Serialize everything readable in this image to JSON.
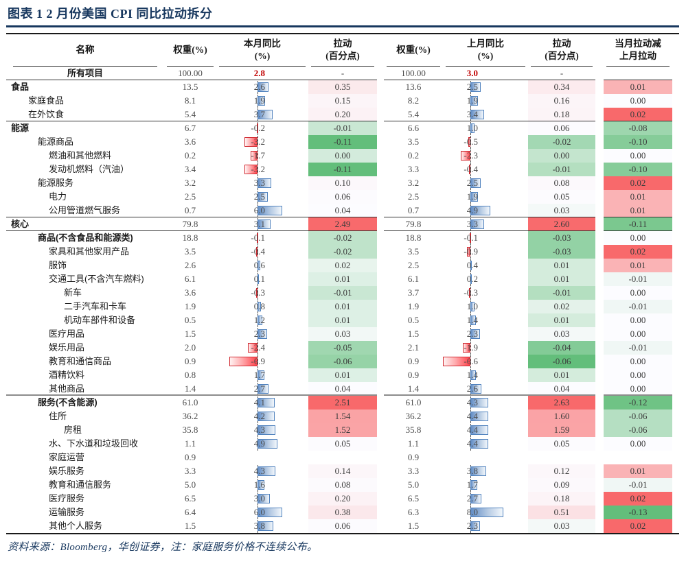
{
  "chart_data": {
    "type": "table",
    "title": "图表 1  2 月份美国 CPI 同比拉动拆分",
    "source_note": "资料来源：Bloomberg，华创证券，注：家庭服务价格不连续公布。",
    "columns": [
      "名称",
      "权重(%)",
      "本月同比(%)",
      "拉动(百分点)",
      "权重(%)",
      "上月同比(%)",
      "拉动(百分点)",
      "当月拉动减上月拉动"
    ],
    "header": {
      "name": "名称",
      "weight_cur": "权重(%)",
      "yoy_cur_1": "本月同比",
      "yoy_cur_2": "(%)",
      "pull_cur_1": "拉动",
      "pull_cur_2": "(百分点)",
      "weight_prev": "权重(%)",
      "yoy_prev_1": "上月同比",
      "yoy_prev_2": "(%)",
      "pull_prev_1": "拉动",
      "pull_prev_2": "(百分点)",
      "delta_1": "当月拉动减",
      "delta_2": "上月拉动"
    },
    "colors": {
      "navy": "#17375E",
      "red_text": "#C00000",
      "scale_red": "#F8696B",
      "scale_mid": "#FCFCFF",
      "scale_green": "#63BE7B",
      "bar_blue_border": "#4F81BD",
      "bar_red_border": "#D02A31"
    },
    "rows": [
      {
        "label": "所有项目",
        "indent": 0,
        "bold": true,
        "center": true,
        "sep": "thin",
        "w1": "100.00",
        "yoy1": "2.8",
        "yoy_red": true,
        "no_bar": true,
        "pull1": "-",
        "w2": "100.00",
        "yoy2": "3.0",
        "pull2": "-",
        "delta": null
      },
      {
        "label": "食品",
        "indent": 0,
        "bold": true,
        "w1": "13.5",
        "yoy1": "2.6",
        "pull1": "0.35",
        "w2": "13.6",
        "yoy2": "2.5",
        "pull2": "0.34",
        "delta": "0.01"
      },
      {
        "label": "家庭食品",
        "indent": 1,
        "w1": "8.1",
        "yoy1": "1.9",
        "pull1": "0.15",
        "w2": "8.2",
        "yoy2": "1.9",
        "pull2": "0.16",
        "delta": "0.00"
      },
      {
        "label": "在外饮食",
        "indent": 1,
        "sep": "thin",
        "w1": "5.4",
        "yoy1": "3.7",
        "pull1": "0.20",
        "w2": "5.4",
        "yoy2": "3.4",
        "pull2": "0.18",
        "delta": "0.02"
      },
      {
        "label": "能源",
        "indent": 0,
        "bold": true,
        "w1": "6.7",
        "yoy1": "-0.2",
        "pull1": "-0.01",
        "w2": "6.6",
        "yoy2": "1.0",
        "pull2": "0.06",
        "delta": "-0.08"
      },
      {
        "label": "能源商品",
        "indent": 2,
        "w1": "3.6",
        "yoy1": "-3.2",
        "pull1": "-0.11",
        "w2": "3.5",
        "yoy2": "-0.5",
        "pull2": "-0.02",
        "delta": "-0.10"
      },
      {
        "label": "燃油和其他燃料",
        "indent": 3,
        "w1": "0.2",
        "yoy1": "-1.7",
        "pull1": "0.00",
        "w2": "0.2",
        "yoy2": "-2.3",
        "pull2": "0.00",
        "delta": "0.00"
      },
      {
        "label": "发动机燃料（汽油）",
        "indent": 3,
        "w1": "3.4",
        "yoy1": "-3.2",
        "pull1": "-0.11",
        "w2": "3.3",
        "yoy2": "-0.4",
        "pull2": "-0.01",
        "delta": "-0.10"
      },
      {
        "label": "能源服务",
        "indent": 2,
        "w1": "3.2",
        "yoy1": "3.3",
        "pull1": "0.10",
        "w2": "3.2",
        "yoy2": "2.5",
        "pull2": "0.08",
        "delta": "0.02"
      },
      {
        "label": "电力",
        "indent": 3,
        "w1": "2.5",
        "yoy1": "2.5",
        "pull1": "0.06",
        "w2": "2.5",
        "yoy2": "1.9",
        "pull2": "0.05",
        "delta": "0.01"
      },
      {
        "label": "公用管道燃气服务",
        "indent": 3,
        "sep": "thin",
        "w1": "0.7",
        "yoy1": "6.0",
        "pull1": "0.04",
        "w2": "0.7",
        "yoy2": "4.9",
        "pull2": "0.03",
        "delta": "0.01"
      },
      {
        "label": "核心",
        "indent": 0,
        "bold": true,
        "sep": "thin",
        "w1": "79.8",
        "yoy1": "3.1",
        "pull1": "2.49",
        "w2": "79.8",
        "yoy2": "3.3",
        "pull2": "2.60",
        "delta": "-0.11"
      },
      {
        "label": "商品(不含食品和能源类)",
        "indent": 2,
        "bold": true,
        "w1": "18.8",
        "yoy1": "-0.1",
        "pull1": "-0.02",
        "w2": "18.8",
        "yoy2": "-0.1",
        "pull2": "-0.03",
        "delta": "0.00"
      },
      {
        "label": "家具和其他家用产品",
        "indent": 3,
        "w1": "3.5",
        "yoy1": "-0.4",
        "pull1": "-0.02",
        "w2": "3.5",
        "yoy2": "-0.9",
        "pull2": "-0.03",
        "delta": "0.02"
      },
      {
        "label": "服饰",
        "indent": 3,
        "w1": "2.6",
        "yoy1": "0.6",
        "pull1": "0.02",
        "w2": "2.5",
        "yoy2": "0.4",
        "pull2": "0.01",
        "delta": "0.01"
      },
      {
        "label": "交通工具(不含汽车燃料)",
        "indent": 3,
        "w1": "6.1",
        "yoy1": "0.1",
        "pull1": "0.01",
        "w2": "6.1",
        "yoy2": "0.2",
        "pull2": "0.01",
        "delta": "-0.01"
      },
      {
        "label": "新车",
        "indent": 4,
        "w1": "3.6",
        "yoy1": "-0.3",
        "pull1": "-0.01",
        "w2": "3.7",
        "yoy2": "-0.3",
        "pull2": "-0.01",
        "delta": "0.00"
      },
      {
        "label": "二手汽车和卡车",
        "indent": 4,
        "w1": "1.9",
        "yoy1": "0.8",
        "pull1": "0.01",
        "w2": "1.9",
        "yoy2": "1.0",
        "pull2": "0.02",
        "delta": "-0.01"
      },
      {
        "label": "机动车部件和设备",
        "indent": 4,
        "w1": "0.5",
        "yoy1": "1.2",
        "pull1": "0.01",
        "w2": "0.5",
        "yoy2": "1.4",
        "pull2": "0.01",
        "delta": "0.00"
      },
      {
        "label": "医疗用品",
        "indent": 3,
        "w1": "1.5",
        "yoy1": "2.3",
        "pull1": "0.03",
        "w2": "1.5",
        "yoy2": "2.3",
        "pull2": "0.03",
        "delta": "0.00"
      },
      {
        "label": "娱乐用品",
        "indent": 3,
        "w1": "2.0",
        "yoy1": "-2.4",
        "pull1": "-0.05",
        "w2": "2.1",
        "yoy2": "-1.9",
        "pull2": "-0.04",
        "delta": "-0.01"
      },
      {
        "label": "教育和通信商品",
        "indent": 3,
        "w1": "0.9",
        "yoy1": "-6.9",
        "pull1": "-0.06",
        "w2": "0.9",
        "yoy2": "-6.6",
        "pull2": "-0.06",
        "delta": "0.00"
      },
      {
        "label": "酒精饮料",
        "indent": 3,
        "w1": "0.8",
        "yoy1": "1.7",
        "pull1": "0.01",
        "w2": "0.9",
        "yoy2": "1.4",
        "pull2": "0.01",
        "delta": "0.00"
      },
      {
        "label": "其他商品",
        "indent": 3,
        "sep": "thick",
        "w1": "1.4",
        "yoy1": "2.7",
        "pull1": "0.04",
        "w2": "1.4",
        "yoy2": "2.6",
        "pull2": "0.04",
        "delta": "0.00"
      },
      {
        "label": "服务(不含能源)",
        "indent": 2,
        "bold": true,
        "w1": "61.0",
        "yoy1": "4.1",
        "pull1": "2.51",
        "w2": "61.0",
        "yoy2": "4.3",
        "pull2": "2.63",
        "delta": "-0.12"
      },
      {
        "label": "住所",
        "indent": 3,
        "w1": "36.2",
        "yoy1": "4.2",
        "pull1": "1.54",
        "w2": "36.2",
        "yoy2": "4.4",
        "pull2": "1.60",
        "delta": "-0.06"
      },
      {
        "label": "房租",
        "indent": 4,
        "w1": "35.8",
        "yoy1": "4.3",
        "pull1": "1.52",
        "w2": "35.8",
        "yoy2": "4.4",
        "pull2": "1.59",
        "delta": "-0.06"
      },
      {
        "label": "水、下水道和垃圾回收",
        "indent": 3,
        "w1": "1.1",
        "yoy1": "4.9",
        "pull1": "0.05",
        "w2": "1.1",
        "yoy2": "4.4",
        "pull2": "0.05",
        "delta": "0.00"
      },
      {
        "label": "家庭运营",
        "indent": 3,
        "w1": "0.9",
        "yoy1": null,
        "pull1": null,
        "w2": "0.9",
        "yoy2": null,
        "pull2": null,
        "delta": null
      },
      {
        "label": "娱乐服务",
        "indent": 3,
        "w1": "3.3",
        "yoy1": "4.3",
        "pull1": "0.14",
        "w2": "3.3",
        "yoy2": "3.8",
        "pull2": "0.12",
        "delta": "0.01"
      },
      {
        "label": "教育和通信服务",
        "indent": 3,
        "w1": "5.0",
        "yoy1": "1.6",
        "pull1": "0.08",
        "w2": "5.0",
        "yoy2": "1.7",
        "pull2": "0.09",
        "delta": "-0.01"
      },
      {
        "label": "医疗服务",
        "indent": 3,
        "w1": "6.5",
        "yoy1": "3.0",
        "pull1": "0.20",
        "w2": "6.5",
        "yoy2": "2.7",
        "pull2": "0.18",
        "delta": "0.02"
      },
      {
        "label": "运输服务",
        "indent": 3,
        "w1": "6.4",
        "yoy1": "6.0",
        "pull1": "0.38",
        "w2": "6.3",
        "yoy2": "8.0",
        "pull2": "0.51",
        "delta": "-0.13"
      },
      {
        "label": "其他个人服务",
        "indent": 3,
        "w1": "1.5",
        "yoy1": "3.8",
        "pull1": "0.06",
        "w2": "1.5",
        "yoy2": "2.3",
        "pull2": "0.03",
        "delta": "0.02"
      }
    ]
  }
}
